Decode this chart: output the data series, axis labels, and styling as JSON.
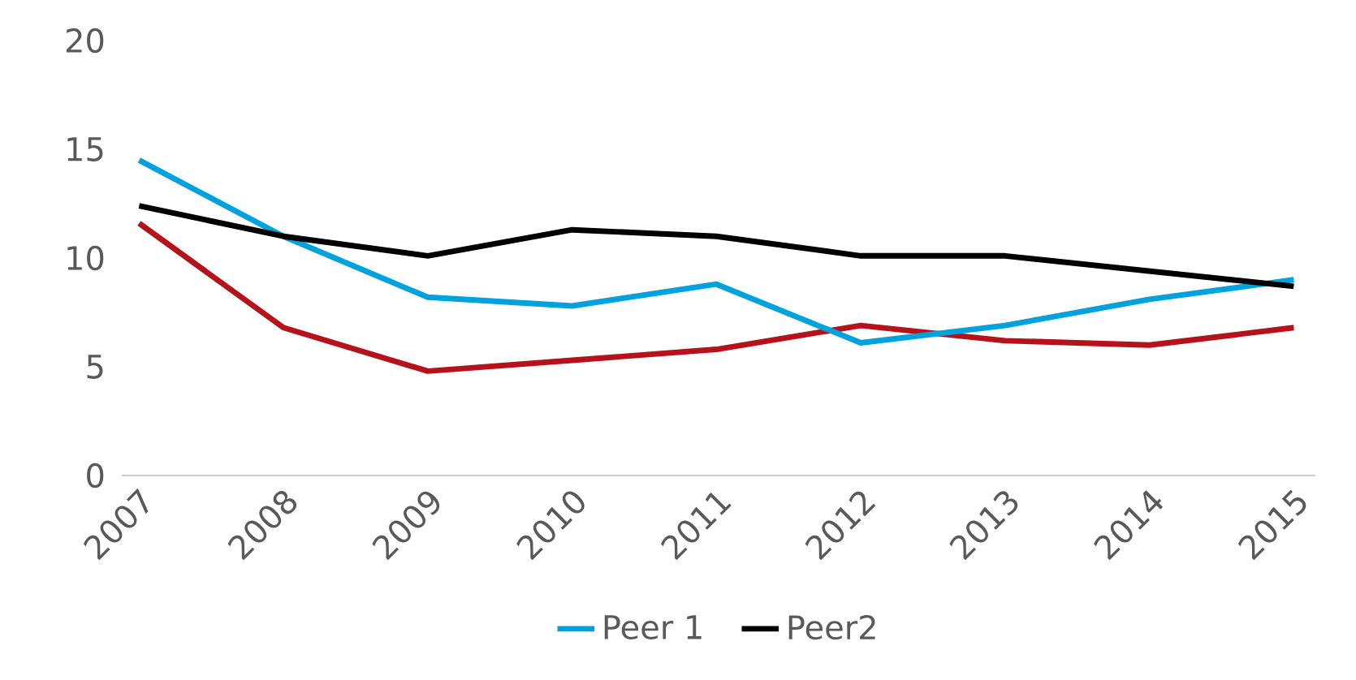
{
  "chart_data": {
    "type": "line",
    "categories": [
      "2007",
      "2008",
      "2009",
      "2010",
      "2011",
      "2012",
      "2013",
      "2014",
      "2015"
    ],
    "series": [
      {
        "color": "#b5121b",
        "values": [
          11.6,
          6.8,
          4.8,
          5.3,
          5.8,
          6.9,
          6.2,
          6.0,
          6.8
        ]
      },
      {
        "name": "Peer 1",
        "color": "#00a2de",
        "values": [
          14.5,
          11.0,
          8.2,
          7.8,
          8.8,
          6.1,
          6.9,
          8.1,
          9.0
        ]
      },
      {
        "name": "Peer2",
        "color": "#000000",
        "values": [
          12.4,
          11.0,
          10.1,
          11.3,
          11.0,
          10.1,
          10.1,
          9.4,
          8.7
        ]
      }
    ],
    "ylim": [
      0,
      20
    ],
    "yticks": [
      0,
      5,
      10,
      15,
      20
    ],
    "grid": false,
    "legend": "bottom",
    "marker": "none",
    "line_style": "solid"
  }
}
